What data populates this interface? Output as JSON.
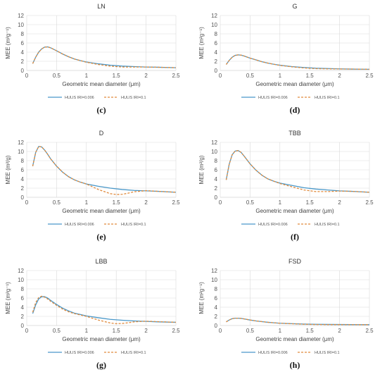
{
  "figure": {
    "colors": {
      "series_1": "#4a98c9",
      "series_2": "#e08a3c",
      "grid": "#d9d9d9",
      "axis": "#bfbfbf"
    }
  },
  "chart_data": [
    {
      "letter": "(c)",
      "type": "line",
      "title": "LN",
      "xlabel": "Geometric mean diameter (μm)",
      "ylabel": "MEE (m²g⁻¹)",
      "xlim": [
        0,
        2.5
      ],
      "ylim": [
        0,
        12
      ],
      "xticks": [
        "0",
        "0.5",
        "1",
        "1.5",
        "2",
        "2.5"
      ],
      "yticks": [
        "0",
        "2",
        "4",
        "6",
        "8",
        "10",
        "12"
      ],
      "grid": true,
      "legend_position": "bottom",
      "series": [
        {
          "name": "HULIS IRI=0.006",
          "style": "solid",
          "color": "#4a98c9",
          "x": [
            0.1,
            0.15,
            0.2,
            0.25,
            0.3,
            0.35,
            0.4,
            0.5,
            0.6,
            0.7,
            0.8,
            0.9,
            1.0,
            1.2,
            1.4,
            1.6,
            1.8,
            2.0,
            2.2,
            2.5
          ],
          "y": [
            1.5,
            2.9,
            4.0,
            4.7,
            5.1,
            5.15,
            4.95,
            4.3,
            3.6,
            3.0,
            2.5,
            2.15,
            1.85,
            1.45,
            1.15,
            0.95,
            0.85,
            0.75,
            0.7,
            0.6
          ]
        },
        {
          "name": "HULIS IRI=0.1",
          "style": "dashed",
          "color": "#e08a3c",
          "x": [
            0.1,
            0.15,
            0.2,
            0.25,
            0.3,
            0.35,
            0.4,
            0.5,
            0.6,
            0.7,
            0.8,
            0.9,
            1.0,
            1.2,
            1.4,
            1.6,
            1.8,
            2.0,
            2.2,
            2.5
          ],
          "y": [
            1.5,
            2.9,
            4.0,
            4.7,
            5.1,
            5.15,
            4.95,
            4.3,
            3.6,
            3.0,
            2.5,
            2.15,
            1.8,
            1.3,
            0.95,
            0.75,
            0.75,
            0.75,
            0.7,
            0.6
          ]
        }
      ]
    },
    {
      "letter": "(d)",
      "type": "line",
      "title": "G",
      "xlabel": "Geometric mean diameter (μm)",
      "ylabel": "MEE (m²g⁻¹)",
      "xlim": [
        0,
        2.5
      ],
      "ylim": [
        0,
        12
      ],
      "xticks": [
        "0",
        "0.5",
        "1",
        "1.5",
        "2",
        "2.5"
      ],
      "yticks": [
        "0",
        "2",
        "4",
        "6",
        "8",
        "10",
        "12"
      ],
      "grid": true,
      "legend_position": "bottom",
      "series": [
        {
          "name": "HULIS IRI=0.006",
          "style": "solid",
          "color": "#4a98c9",
          "x": [
            0.1,
            0.15,
            0.2,
            0.25,
            0.3,
            0.35,
            0.4,
            0.5,
            0.6,
            0.7,
            0.8,
            0.9,
            1.0,
            1.2,
            1.4,
            1.6,
            1.8,
            2.0,
            2.2,
            2.5
          ],
          "y": [
            1.3,
            2.2,
            2.9,
            3.3,
            3.4,
            3.35,
            3.15,
            2.7,
            2.3,
            1.9,
            1.6,
            1.35,
            1.15,
            0.85,
            0.65,
            0.5,
            0.42,
            0.35,
            0.3,
            0.25
          ]
        },
        {
          "name": "HULIS IRI=0.1",
          "style": "dashed",
          "color": "#e08a3c",
          "x": [
            0.1,
            0.15,
            0.2,
            0.25,
            0.3,
            0.35,
            0.4,
            0.5,
            0.6,
            0.7,
            0.8,
            0.9,
            1.0,
            1.2,
            1.4,
            1.6,
            1.8,
            2.0,
            2.2,
            2.5
          ],
          "y": [
            1.3,
            2.2,
            2.9,
            3.3,
            3.4,
            3.35,
            3.15,
            2.7,
            2.3,
            1.9,
            1.6,
            1.35,
            1.1,
            0.8,
            0.55,
            0.4,
            0.35,
            0.32,
            0.3,
            0.25
          ]
        }
      ]
    },
    {
      "letter": "(e)",
      "type": "line",
      "title": "D",
      "xlabel": "Geometric mean diameter (μm)",
      "ylabel": "MEE (m²/g)",
      "xlim": [
        0,
        2.5
      ],
      "ylim": [
        0,
        12
      ],
      "xticks": [
        "0",
        "0.5",
        "1",
        "1.5",
        "2",
        "2.5"
      ],
      "yticks": [
        "0",
        "2",
        "4",
        "6",
        "8",
        "10",
        "12"
      ],
      "grid": true,
      "legend_position": "bottom",
      "series": [
        {
          "name": "HULIS IRI=0.006",
          "style": "solid",
          "color": "#4a98c9",
          "x": [
            0.1,
            0.15,
            0.2,
            0.25,
            0.3,
            0.35,
            0.4,
            0.5,
            0.6,
            0.7,
            0.8,
            0.9,
            1.0,
            1.2,
            1.4,
            1.6,
            1.8,
            2.0,
            2.2,
            2.5
          ],
          "y": [
            6.8,
            9.8,
            11.1,
            11.0,
            10.3,
            9.4,
            8.4,
            6.8,
            5.5,
            4.5,
            3.8,
            3.3,
            2.9,
            2.4,
            2.0,
            1.7,
            1.5,
            1.4,
            1.3,
            1.1
          ]
        },
        {
          "name": "HULIS IRI=0.1",
          "style": "dashed",
          "color": "#e08a3c",
          "x": [
            0.1,
            0.15,
            0.2,
            0.25,
            0.3,
            0.35,
            0.4,
            0.5,
            0.6,
            0.7,
            0.8,
            0.9,
            1.0,
            1.1,
            1.2,
            1.4,
            1.5,
            1.6,
            1.7,
            1.8,
            2.0,
            2.2,
            2.5
          ],
          "y": [
            6.8,
            9.8,
            11.1,
            11.0,
            10.3,
            9.4,
            8.4,
            6.8,
            5.5,
            4.5,
            3.8,
            3.3,
            2.9,
            2.3,
            1.7,
            0.8,
            0.6,
            0.65,
            0.9,
            1.2,
            1.45,
            1.3,
            1.1
          ]
        }
      ]
    },
    {
      "letter": "(f)",
      "type": "line",
      "title": "TBB",
      "xlabel": "Geometric mean diameter (μm)",
      "ylabel": "MEE (m²/g)",
      "xlim": [
        0,
        2.5
      ],
      "ylim": [
        0,
        12
      ],
      "xticks": [
        "0",
        "0.5",
        "1",
        "1.5",
        "2",
        "2.5"
      ],
      "yticks": [
        "0",
        "2",
        "4",
        "6",
        "8",
        "10",
        "12"
      ],
      "grid": true,
      "legend_position": "bottom",
      "series": [
        {
          "name": "HULIS IRI=0.006",
          "style": "solid",
          "color": "#4a98c9",
          "x": [
            0.1,
            0.15,
            0.2,
            0.25,
            0.3,
            0.35,
            0.4,
            0.5,
            0.6,
            0.7,
            0.8,
            0.9,
            1.0,
            1.2,
            1.4,
            1.6,
            1.8,
            2.0,
            2.2,
            2.5
          ],
          "y": [
            3.8,
            7.2,
            9.3,
            10.1,
            10.2,
            9.8,
            9.0,
            7.3,
            5.9,
            4.8,
            4.0,
            3.5,
            3.1,
            2.6,
            2.1,
            1.8,
            1.6,
            1.4,
            1.3,
            1.1
          ]
        },
        {
          "name": "HULIS IRI=0.1",
          "style": "dashed",
          "color": "#e08a3c",
          "x": [
            0.1,
            0.15,
            0.2,
            0.25,
            0.3,
            0.35,
            0.4,
            0.5,
            0.6,
            0.7,
            0.8,
            0.9,
            1.0,
            1.2,
            1.4,
            1.6,
            1.8,
            2.0,
            2.2,
            2.5
          ],
          "y": [
            3.8,
            7.2,
            9.3,
            10.1,
            10.2,
            9.8,
            9.0,
            7.3,
            5.9,
            4.8,
            4.0,
            3.5,
            3.0,
            2.3,
            1.6,
            1.25,
            1.25,
            1.35,
            1.3,
            1.1
          ]
        }
      ]
    },
    {
      "letter": "(g)",
      "type": "line",
      "title": "LBB",
      "xlabel": "Geometric mean diameter (μm)",
      "ylabel": "MEE (m²g⁻¹)",
      "xlim": [
        0,
        2.5
      ],
      "ylim": [
        0,
        12
      ],
      "xticks": [
        "0",
        "0.5",
        "1",
        "1.5",
        "2",
        "2.5"
      ],
      "yticks": [
        "0",
        "2",
        "4",
        "6",
        "8",
        "10",
        "12"
      ],
      "grid": true,
      "legend_position": "bottom",
      "series": [
        {
          "name": "HULIS IRI=0.006",
          "style": "solid",
          "color": "#4a98c9",
          "x": [
            0.1,
            0.15,
            0.2,
            0.25,
            0.3,
            0.35,
            0.4,
            0.5,
            0.6,
            0.7,
            0.8,
            0.9,
            1.0,
            1.2,
            1.4,
            1.6,
            1.8,
            2.0,
            2.2,
            2.5
          ],
          "y": [
            2.6,
            4.5,
            5.8,
            6.3,
            6.3,
            6.0,
            5.5,
            4.6,
            3.8,
            3.2,
            2.7,
            2.4,
            2.1,
            1.7,
            1.35,
            1.15,
            1.0,
            0.9,
            0.8,
            0.7
          ]
        },
        {
          "name": "HULIS IRI=0.1",
          "style": "dashed",
          "color": "#e08a3c",
          "x": [
            0.1,
            0.15,
            0.2,
            0.25,
            0.3,
            0.35,
            0.4,
            0.5,
            0.6,
            0.7,
            0.8,
            0.9,
            1.0,
            1.1,
            1.2,
            1.4,
            1.5,
            1.6,
            1.7,
            1.8,
            2.0,
            2.2,
            2.5
          ],
          "y": [
            2.9,
            5.0,
            6.1,
            6.4,
            6.2,
            5.8,
            5.3,
            4.4,
            3.6,
            3.0,
            2.6,
            2.3,
            2.0,
            1.6,
            1.2,
            0.55,
            0.4,
            0.45,
            0.6,
            0.8,
            0.95,
            0.85,
            0.7
          ]
        }
      ]
    },
    {
      "letter": "(h)",
      "type": "line",
      "title": "FSD",
      "xlabel": "Geometric mean diameter (μm)",
      "ylabel": "MEE (m²g⁻¹)",
      "xlim": [
        0,
        2.5
      ],
      "ylim": [
        0,
        12
      ],
      "xticks": [
        "0",
        "0.5",
        "1",
        "1.5",
        "2",
        "2.5"
      ],
      "yticks": [
        "0",
        "2",
        "4",
        "6",
        "8",
        "10",
        "12"
      ],
      "grid": true,
      "legend_position": "bottom",
      "series": [
        {
          "name": "HULIS IRI=0.006",
          "style": "solid",
          "color": "#4a98c9",
          "x": [
            0.1,
            0.15,
            0.2,
            0.25,
            0.3,
            0.35,
            0.4,
            0.5,
            0.6,
            0.7,
            0.8,
            0.9,
            1.0,
            1.2,
            1.4,
            1.6,
            1.8,
            2.0,
            2.2,
            2.5
          ],
          "y": [
            0.8,
            1.2,
            1.5,
            1.6,
            1.6,
            1.55,
            1.45,
            1.2,
            1.0,
            0.85,
            0.7,
            0.6,
            0.5,
            0.4,
            0.32,
            0.27,
            0.24,
            0.22,
            0.2,
            0.18
          ]
        },
        {
          "name": "HULIS IRI=0.1",
          "style": "dashed",
          "color": "#e08a3c",
          "x": [
            0.1,
            0.15,
            0.2,
            0.25,
            0.3,
            0.35,
            0.4,
            0.5,
            0.6,
            0.7,
            0.8,
            0.9,
            1.0,
            1.2,
            1.4,
            1.6,
            1.8,
            2.0,
            2.2,
            2.5
          ],
          "y": [
            0.8,
            1.2,
            1.5,
            1.6,
            1.6,
            1.55,
            1.45,
            1.2,
            1.0,
            0.85,
            0.7,
            0.6,
            0.5,
            0.38,
            0.28,
            0.22,
            0.2,
            0.2,
            0.19,
            0.18
          ]
        }
      ]
    }
  ]
}
